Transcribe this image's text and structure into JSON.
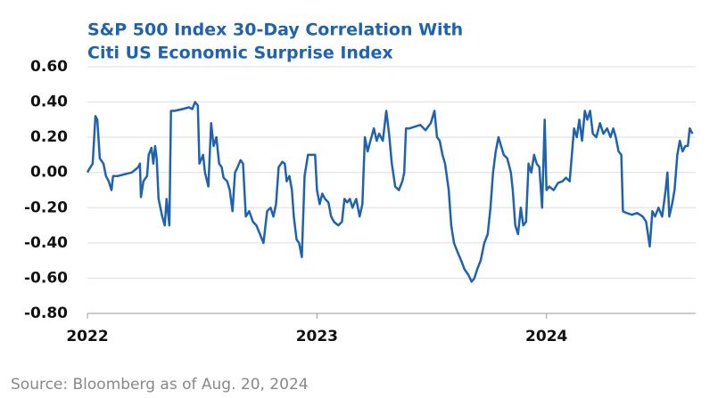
{
  "chart_data": {
    "type": "line",
    "title": [
      "S&P 500 Index 30-Day Correlation With",
      "Citi US Economic Surprise Index"
    ],
    "source": "Source: Bloomberg as of Aug. 20, 2024",
    "color": "#1f63ad",
    "grid": true,
    "xlim": [
      2022,
      2024.65
    ],
    "xticks": [
      2022,
      2023,
      2024
    ],
    "ylim": [
      -0.8,
      0.6
    ],
    "yticks": [
      {
        "value": 0.6,
        "label": "0.60"
      },
      {
        "value": 0.4,
        "label": "0.40"
      },
      {
        "value": 0.2,
        "label": "0.20"
      },
      {
        "value": 0,
        "label": "0.00"
      },
      {
        "value": -0.2,
        "label": "-0.20"
      },
      {
        "value": -0.4,
        "label": "-0.40"
      },
      {
        "value": -0.6,
        "label": "-0.60"
      },
      {
        "value": -0.8,
        "label": "-0.80"
      }
    ],
    "x": [
      2022.0,
      2022.008,
      2022.023,
      2022.035,
      2022.043,
      2022.054,
      2022.07,
      2022.081,
      2022.093,
      2022.105,
      2022.112,
      2022.132,
      2022.163,
      2022.194,
      2022.221,
      2022.229,
      2022.233,
      2022.244,
      2022.26,
      2022.267,
      2022.279,
      2022.287,
      2022.295,
      2022.302,
      2022.31,
      2022.326,
      2022.337,
      2022.345,
      2022.357,
      2022.364,
      2022.38,
      2022.415,
      2022.442,
      2022.457,
      2022.469,
      2022.481,
      2022.488,
      2022.504,
      2022.512,
      2022.527,
      2022.539,
      2022.55,
      2022.562,
      2022.574,
      2022.585,
      2022.593,
      2022.609,
      2022.62,
      2022.632,
      2022.643,
      2022.651,
      2022.667,
      2022.678,
      2022.69,
      2022.705,
      2022.721,
      2022.736,
      2022.752,
      2022.767,
      2022.783,
      2022.798,
      2022.81,
      2022.822,
      2022.833,
      2022.849,
      2022.86,
      2022.868,
      2022.88,
      2022.891,
      2022.899,
      2022.911,
      2022.922,
      2022.934,
      2022.946,
      2022.961,
      2022.977,
      2022.992,
      2023.0,
      2023.012,
      2023.023,
      2023.035,
      2023.05,
      2023.062,
      2023.074,
      2023.093,
      2023.109,
      2023.12,
      2023.132,
      2023.143,
      2023.155,
      2023.171,
      2023.186,
      2023.198,
      2023.209,
      2023.221,
      2023.233,
      2023.248,
      2023.26,
      2023.271,
      2023.287,
      2023.302,
      2023.314,
      2023.326,
      2023.341,
      2023.357,
      2023.372,
      2023.38,
      2023.388,
      2023.403,
      2023.426,
      2023.45,
      2023.473,
      2023.496,
      2023.512,
      2023.523,
      2023.535,
      2023.547,
      2023.558,
      2023.574,
      2023.585,
      2023.597,
      2023.612,
      2023.628,
      2023.643,
      2023.659,
      2023.674,
      2023.686,
      2023.698,
      2023.713,
      2023.729,
      2023.744,
      2023.756,
      2023.767,
      2023.779,
      2023.791,
      2023.802,
      2023.814,
      2023.829,
      2023.845,
      2023.853,
      2023.864,
      2023.876,
      2023.888,
      2023.899,
      2023.911,
      2023.922,
      2023.934,
      2023.946,
      2023.957,
      2023.969,
      2023.981,
      2023.992,
      2024.0,
      2024.012,
      2024.031,
      2024.05,
      2024.07,
      2024.085,
      2024.101,
      2024.12,
      2024.132,
      2024.143,
      2024.155,
      2024.167,
      2024.178,
      2024.19,
      2024.202,
      2024.217,
      2024.233,
      2024.248,
      2024.264,
      2024.279,
      2024.291,
      2024.302,
      2024.314,
      2024.326,
      2024.333,
      2024.349,
      2024.372,
      2024.395,
      2024.419,
      2024.434,
      2024.45,
      2024.461,
      2024.473,
      2024.488,
      2024.504,
      2024.519,
      2024.527,
      2024.535,
      2024.547,
      2024.558,
      2024.57,
      2024.581,
      2024.593,
      2024.605,
      2024.616,
      2024.624,
      2024.636
    ],
    "values": [
      0.0,
      0.02,
      0.05,
      0.32,
      0.3,
      0.08,
      0.05,
      -0.02,
      -0.05,
      -0.1,
      -0.02,
      -0.02,
      -0.01,
      0.0,
      0.03,
      0.05,
      -0.14,
      -0.05,
      -0.02,
      0.1,
      0.14,
      0.05,
      0.15,
      0.08,
      -0.15,
      -0.25,
      -0.3,
      -0.15,
      -0.3,
      0.35,
      0.35,
      0.36,
      0.37,
      0.36,
      0.4,
      0.38,
      0.05,
      0.1,
      0.0,
      -0.08,
      0.28,
      0.15,
      0.2,
      0.05,
      0.03,
      -0.03,
      -0.05,
      -0.1,
      -0.22,
      0.0,
      0.02,
      0.07,
      0.05,
      -0.25,
      -0.22,
      -0.28,
      -0.3,
      -0.35,
      -0.4,
      -0.22,
      -0.2,
      -0.25,
      -0.18,
      0.03,
      0.06,
      0.05,
      -0.05,
      -0.02,
      -0.1,
      -0.25,
      -0.38,
      -0.4,
      -0.48,
      -0.02,
      0.1,
      0.1,
      0.1,
      -0.1,
      -0.18,
      -0.12,
      -0.15,
      -0.17,
      -0.25,
      -0.28,
      -0.3,
      -0.28,
      -0.15,
      -0.17,
      -0.15,
      -0.2,
      -0.15,
      -0.25,
      -0.18,
      0.2,
      0.12,
      0.18,
      0.25,
      0.18,
      0.22,
      0.18,
      0.35,
      0.22,
      0.05,
      -0.08,
      -0.1,
      -0.05,
      0.0,
      0.25,
      0.25,
      0.26,
      0.27,
      0.24,
      0.28,
      0.35,
      0.2,
      0.18,
      0.1,
      0.05,
      -0.1,
      -0.3,
      -0.4,
      -0.45,
      -0.5,
      -0.55,
      -0.58,
      -0.62,
      -0.6,
      -0.55,
      -0.5,
      -0.4,
      -0.35,
      -0.2,
      0.0,
      0.12,
      0.2,
      0.15,
      0.1,
      0.08,
      0.0,
      -0.1,
      -0.3,
      -0.35,
      -0.2,
      -0.3,
      -0.28,
      0.05,
      0.0,
      0.1,
      0.05,
      0.03,
      -0.2,
      0.3,
      -0.1,
      -0.08,
      -0.1,
      -0.06,
      -0.05,
      -0.03,
      -0.05,
      0.25,
      0.2,
      0.3,
      0.18,
      0.35,
      0.3,
      0.35,
      0.22,
      0.2,
      0.28,
      0.22,
      0.25,
      0.2,
      0.25,
      0.2,
      0.12,
      0.1,
      -0.22,
      -0.23,
      -0.24,
      -0.23,
      -0.25,
      -0.28,
      -0.42,
      -0.22,
      -0.25,
      -0.2,
      -0.25,
      -0.1,
      0.0,
      -0.25,
      -0.18,
      -0.1,
      0.1,
      0.18,
      0.12,
      0.15,
      0.15,
      0.25,
      0.22
    ]
  }
}
